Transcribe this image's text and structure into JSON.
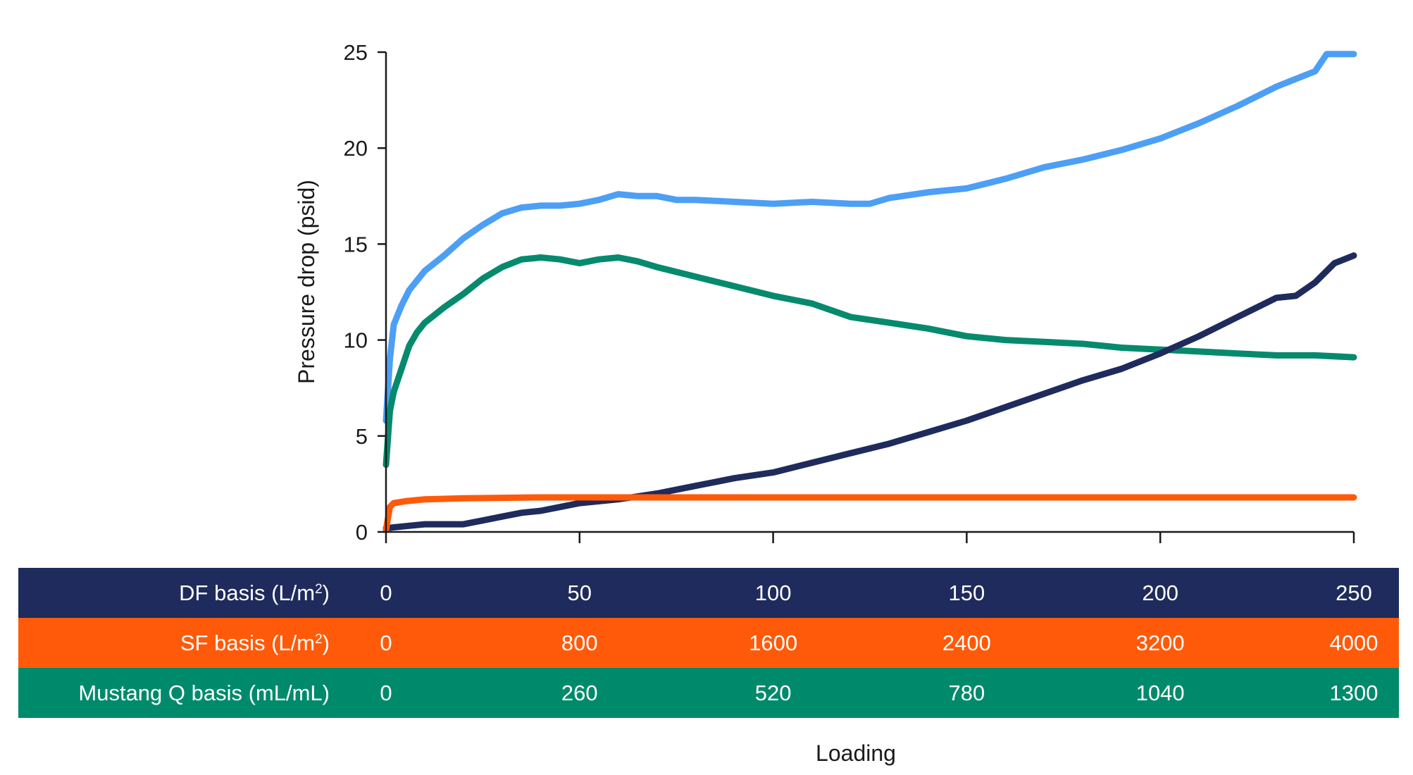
{
  "chart_data": {
    "type": "line",
    "ylabel": "Pressure drop (psid)",
    "xlabel": "Loading",
    "xlim": [
      0,
      250
    ],
    "ylim": [
      0,
      25
    ],
    "yticks": [
      "0",
      "5",
      "10",
      "15",
      "20",
      "25"
    ],
    "xticks": [
      0,
      50,
      100,
      150,
      200,
      250
    ],
    "grid": false,
    "series": [
      {
        "color": "#4d9ff5",
        "points": [
          [
            0,
            5.8
          ],
          [
            1,
            9.0
          ],
          [
            2,
            10.8
          ],
          [
            4,
            11.8
          ],
          [
            6,
            12.6
          ],
          [
            10,
            13.6
          ],
          [
            15,
            14.4
          ],
          [
            20,
            15.3
          ],
          [
            25,
            16.0
          ],
          [
            30,
            16.6
          ],
          [
            35,
            16.9
          ],
          [
            40,
            17.0
          ],
          [
            45,
            17.0
          ],
          [
            50,
            17.1
          ],
          [
            55,
            17.3
          ],
          [
            60,
            17.6
          ],
          [
            65,
            17.5
          ],
          [
            70,
            17.5
          ],
          [
            75,
            17.3
          ],
          [
            80,
            17.3
          ],
          [
            90,
            17.2
          ],
          [
            100,
            17.1
          ],
          [
            110,
            17.2
          ],
          [
            120,
            17.1
          ],
          [
            125,
            17.1
          ],
          [
            130,
            17.4
          ],
          [
            140,
            17.7
          ],
          [
            150,
            17.9
          ],
          [
            160,
            18.4
          ],
          [
            170,
            19.0
          ],
          [
            180,
            19.4
          ],
          [
            190,
            19.9
          ],
          [
            200,
            20.5
          ],
          [
            210,
            21.3
          ],
          [
            220,
            22.2
          ],
          [
            230,
            23.2
          ],
          [
            235,
            23.6
          ],
          [
            240,
            24.0
          ],
          [
            243,
            24.9
          ],
          [
            250,
            24.9
          ]
        ]
      },
      {
        "color": "#068a6d",
        "points": [
          [
            0,
            3.5
          ],
          [
            1,
            6.3
          ],
          [
            2,
            7.3
          ],
          [
            4,
            8.5
          ],
          [
            6,
            9.7
          ],
          [
            8,
            10.4
          ],
          [
            10,
            10.9
          ],
          [
            15,
            11.7
          ],
          [
            20,
            12.4
          ],
          [
            25,
            13.2
          ],
          [
            30,
            13.8
          ],
          [
            35,
            14.2
          ],
          [
            40,
            14.3
          ],
          [
            45,
            14.2
          ],
          [
            50,
            14.0
          ],
          [
            55,
            14.2
          ],
          [
            60,
            14.3
          ],
          [
            65,
            14.1
          ],
          [
            70,
            13.8
          ],
          [
            80,
            13.3
          ],
          [
            90,
            12.8
          ],
          [
            100,
            12.3
          ],
          [
            110,
            11.9
          ],
          [
            120,
            11.2
          ],
          [
            130,
            10.9
          ],
          [
            140,
            10.6
          ],
          [
            150,
            10.2
          ],
          [
            160,
            10.0
          ],
          [
            170,
            9.9
          ],
          [
            180,
            9.8
          ],
          [
            190,
            9.6
          ],
          [
            200,
            9.5
          ],
          [
            210,
            9.4
          ],
          [
            220,
            9.3
          ],
          [
            230,
            9.2
          ],
          [
            240,
            9.2
          ],
          [
            250,
            9.1
          ]
        ]
      },
      {
        "color": "#1e2b5c",
        "points": [
          [
            0,
            0.2
          ],
          [
            5,
            0.3
          ],
          [
            10,
            0.4
          ],
          [
            15,
            0.4
          ],
          [
            20,
            0.4
          ],
          [
            25,
            0.6
          ],
          [
            30,
            0.8
          ],
          [
            35,
            1.0
          ],
          [
            40,
            1.1
          ],
          [
            45,
            1.3
          ],
          [
            50,
            1.5
          ],
          [
            60,
            1.7
          ],
          [
            70,
            2.0
          ],
          [
            80,
            2.4
          ],
          [
            90,
            2.8
          ],
          [
            100,
            3.1
          ],
          [
            110,
            3.6
          ],
          [
            120,
            4.1
          ],
          [
            130,
            4.6
          ],
          [
            140,
            5.2
          ],
          [
            150,
            5.8
          ],
          [
            160,
            6.5
          ],
          [
            170,
            7.2
          ],
          [
            180,
            7.9
          ],
          [
            190,
            8.5
          ],
          [
            200,
            9.3
          ],
          [
            210,
            10.2
          ],
          [
            220,
            11.2
          ],
          [
            230,
            12.2
          ],
          [
            235,
            12.3
          ],
          [
            240,
            13.0
          ],
          [
            245,
            14.0
          ],
          [
            250,
            14.4
          ]
        ]
      },
      {
        "color": "#ff5a0a",
        "points": [
          [
            0,
            0.1
          ],
          [
            0.5,
            0.7
          ],
          [
            1,
            1.3
          ],
          [
            2,
            1.5
          ],
          [
            5,
            1.6
          ],
          [
            10,
            1.7
          ],
          [
            20,
            1.75
          ],
          [
            40,
            1.8
          ],
          [
            60,
            1.8
          ],
          [
            100,
            1.8
          ],
          [
            150,
            1.8
          ],
          [
            200,
            1.8
          ],
          [
            250,
            1.8
          ]
        ]
      }
    ],
    "axis_table": [
      {
        "label_main": "DF basis (L/m",
        "label_sup": "2",
        "label_end": ")",
        "color": "#1e2b5c",
        "values": [
          "0",
          "50",
          "100",
          "150",
          "200",
          "250"
        ]
      },
      {
        "label_main": "SF basis (L/m",
        "label_sup": "2",
        "label_end": ")",
        "color": "#ff5a0a",
        "values": [
          "0",
          "800",
          "1600",
          "2400",
          "3200",
          "4000"
        ]
      },
      {
        "label_main": "Mustang Q basis (mL/mL)",
        "label_sup": "",
        "label_end": "",
        "color": "#008a6c",
        "values": [
          "0",
          "260",
          "520",
          "780",
          "1040",
          "1300"
        ]
      }
    ]
  }
}
